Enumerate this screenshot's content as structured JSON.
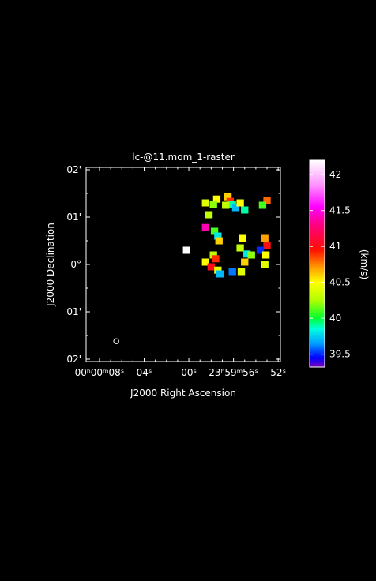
{
  "chart_data": {
    "type": "heatmap",
    "title": "lc-@11.mom_1-raster",
    "xlabel": "J2000 Right Ascension",
    "ylabel": "J2000 Declination",
    "x_ticks": [
      {
        "value": 8,
        "main": "00ʰ00ᵐ08ˢ"
      },
      {
        "value": 4,
        "main": "04ˢ"
      },
      {
        "value": 0,
        "main": "00ˢ"
      },
      {
        "value": -4,
        "main": "23ʰ59ᵐ56ˢ"
      },
      {
        "value": -8,
        "main": "52ˢ"
      }
    ],
    "y_ticks": [
      {
        "value": 2,
        "label": "02'"
      },
      {
        "value": 1,
        "label": "01'"
      },
      {
        "value": 0,
        "label": "0°"
      },
      {
        "value": -1,
        "label": "01'"
      },
      {
        "value": -2,
        "label": "02'"
      }
    ],
    "xlim_sec": [
      9.2,
      -8.2
    ],
    "ylim_arcmin": [
      -2.05,
      2.05
    ],
    "colorbar": {
      "label": "(km/s)",
      "min": 39.32,
      "max": 42.2,
      "ticks": [
        "39.5",
        "40",
        "40.5",
        "41",
        "41.5",
        "42"
      ],
      "stops": [
        {
          "v": 39.32,
          "color": "#7a00b8"
        },
        {
          "v": 39.45,
          "color": "#0000ff"
        },
        {
          "v": 39.65,
          "color": "#00a0ff"
        },
        {
          "v": 39.85,
          "color": "#00ffe0"
        },
        {
          "v": 40.0,
          "color": "#00ff30"
        },
        {
          "v": 40.25,
          "color": "#b0ff00"
        },
        {
          "v": 40.5,
          "color": "#ffff00"
        },
        {
          "v": 40.7,
          "color": "#ffa000"
        },
        {
          "v": 40.95,
          "color": "#ff1000"
        },
        {
          "v": 41.3,
          "color": "#ff0080"
        },
        {
          "v": 41.55,
          "color": "#ff00ff"
        },
        {
          "v": 41.85,
          "color": "#ff90ff"
        },
        {
          "v": 42.2,
          "color": "#ffffff"
        }
      ]
    },
    "beam": {
      "ra_sec": 6.5,
      "dec_arcmin": -1.62,
      "major_arcsec": 4
    },
    "pixel_scale": {
      "ra_sec": 0.22,
      "dec_arcmin": 0.05
    },
    "regions": [
      {
        "ra_sec": -3.5,
        "dec_arcmin": 1.43,
        "vel": 40.6
      },
      {
        "ra_sec": -3.7,
        "dec_arcmin": 1.33,
        "vel": 40.9
      },
      {
        "ra_sec": -3.9,
        "dec_arcmin": 1.27,
        "vel": 39.9
      },
      {
        "ra_sec": -4.2,
        "dec_arcmin": 1.2,
        "vel": 39.7
      },
      {
        "ra_sec": -3.3,
        "dec_arcmin": 1.25,
        "vel": 40.3
      },
      {
        "ra_sec": -2.5,
        "dec_arcmin": 1.38,
        "vel": 40.5
      },
      {
        "ra_sec": -2.2,
        "dec_arcmin": 1.27,
        "vel": 40.2
      },
      {
        "ra_sec": -4.6,
        "dec_arcmin": 1.3,
        "vel": 40.5
      },
      {
        "ra_sec": -5.0,
        "dec_arcmin": 1.15,
        "vel": 39.9
      },
      {
        "ra_sec": -7.0,
        "dec_arcmin": 1.35,
        "vel": 40.8
      },
      {
        "ra_sec": -6.6,
        "dec_arcmin": 1.25,
        "vel": 40.1
      },
      {
        "ra_sec": -1.5,
        "dec_arcmin": 1.3,
        "vel": 40.4
      },
      {
        "ra_sec": -1.8,
        "dec_arcmin": 1.05,
        "vel": 40.3
      },
      {
        "ra_sec": -1.5,
        "dec_arcmin": 0.78,
        "vel": 41.4
      },
      {
        "ra_sec": -2.3,
        "dec_arcmin": 0.7,
        "vel": 40.1
      },
      {
        "ra_sec": -2.6,
        "dec_arcmin": 0.6,
        "vel": 39.8
      },
      {
        "ra_sec": -2.7,
        "dec_arcmin": 0.5,
        "vel": 40.6
      },
      {
        "ra_sec": -2.2,
        "dec_arcmin": 0.2,
        "vel": 40.3
      },
      {
        "ra_sec": -2.4,
        "dec_arcmin": 0.12,
        "vel": 40.9
      },
      {
        "ra_sec": -1.5,
        "dec_arcmin": 0.05,
        "vel": 40.5
      },
      {
        "ra_sec": -2.0,
        "dec_arcmin": -0.05,
        "vel": 41.0
      },
      {
        "ra_sec": -2.6,
        "dec_arcmin": -0.12,
        "vel": 40.4
      },
      {
        "ra_sec": -2.8,
        "dec_arcmin": -0.2,
        "vel": 39.7
      },
      {
        "ra_sec": -4.8,
        "dec_arcmin": 0.55,
        "vel": 40.5
      },
      {
        "ra_sec": -4.6,
        "dec_arcmin": 0.35,
        "vel": 40.3
      },
      {
        "ra_sec": -5.2,
        "dec_arcmin": 0.22,
        "vel": 39.8
      },
      {
        "ra_sec": -5.6,
        "dec_arcmin": 0.2,
        "vel": 40.2
      },
      {
        "ra_sec": -5.0,
        "dec_arcmin": 0.05,
        "vel": 40.6
      },
      {
        "ra_sec": -4.7,
        "dec_arcmin": -0.15,
        "vel": 40.4
      },
      {
        "ra_sec": -6.8,
        "dec_arcmin": 0.55,
        "vel": 40.7
      },
      {
        "ra_sec": -7.0,
        "dec_arcmin": 0.4,
        "vel": 41.0
      },
      {
        "ra_sec": -6.4,
        "dec_arcmin": 0.3,
        "vel": 39.5
      },
      {
        "ra_sec": -6.9,
        "dec_arcmin": 0.2,
        "vel": 40.5
      },
      {
        "ra_sec": -6.8,
        "dec_arcmin": 0.0,
        "vel": 40.4
      },
      {
        "ra_sec": -3.9,
        "dec_arcmin": -0.15,
        "vel": 39.6
      },
      {
        "ra_sec": 0.2,
        "dec_arcmin": 0.3,
        "vel": 42.2
      }
    ]
  }
}
